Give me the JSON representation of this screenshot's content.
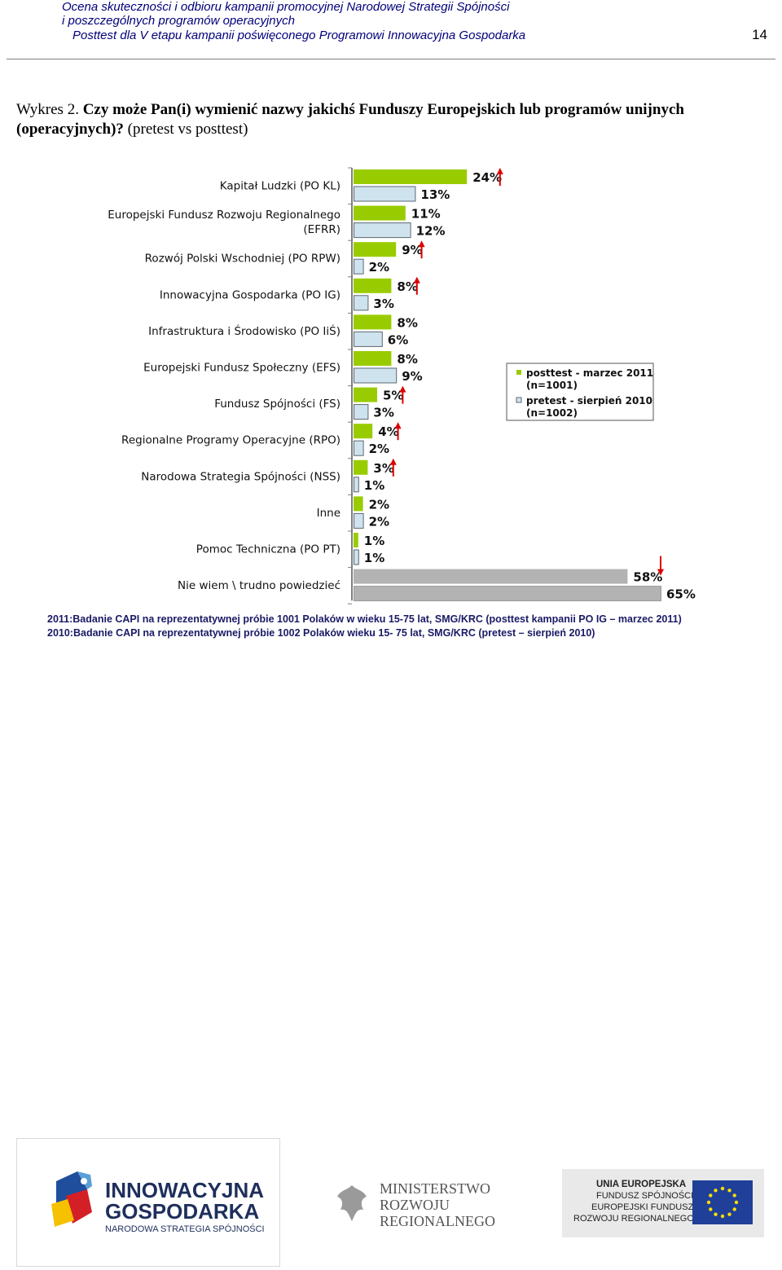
{
  "header": {
    "line1": "Ocena skuteczności i odbioru kampanii promocyjnej Narodowej Strategii Spójności",
    "line2": "i poszczególnych programów operacyjnych",
    "line3": "Posttest dla V etapu kampanii poświęconego Programowi Innowacyjna Gospodarka",
    "page_number": "14"
  },
  "figure": {
    "label": "Wykres 2.",
    "title": "Czy może Pan(i) wymienić nazwy jakichś Funduszy Europejskich lub programów unijnych",
    "title_cont": "(operacyjnych)?",
    "subtitle": "(pretest vs posttest)"
  },
  "colors": {
    "posttest": "#99cc00",
    "pretest": "#cfe3ee",
    "pretest_border": "#5b6770",
    "nie_wiem": "#b3b3b3",
    "arrow": "#dd0000"
  },
  "chart_data": {
    "type": "bar",
    "orientation": "horizontal",
    "categories": [
      "Kapitał Ludzki (PO KL)",
      "Europejski Fundusz Rozwoju Regionalnego (EFRR)",
      "Rozwój Polski Wschodniej (PO RPW)",
      "Innowacyjna Gospodarka (PO IG)",
      "Infrastruktura i Środowisko (PO IiŚ)",
      "Europejski Fundusz Społeczny (EFS)",
      "Fundusz Spójności (FS)",
      "Regionalne Programy Operacyjne (RPO)",
      "Narodowa Strategia Spójności (NSS)",
      "Inne",
      "Pomoc Techniczna (PO PT)",
      "Nie wiem \\ trudno powiedzieć"
    ],
    "category_lines": [
      [
        "Kapitał Ludzki (PO KL)"
      ],
      [
        "Europejski Fundusz Rozwoju Regionalnego",
        "(EFRR)"
      ],
      [
        "Rozwój Polski Wschodniej (PO RPW)"
      ],
      [
        "Innowacyjna Gospodarka (PO IG)"
      ],
      [
        "Infrastruktura i Środowisko (PO IiŚ)"
      ],
      [
        "Europejski Fundusz Społeczny (EFS)"
      ],
      [
        "Fundusz Spójności (FS)"
      ],
      [
        "Regionalne Programy Operacyjne (RPO)"
      ],
      [
        "Narodowa Strategia Spójności (NSS)"
      ],
      [
        "Inne"
      ],
      [
        "Pomoc Techniczna (PO PT)"
      ],
      [
        "Nie wiem \\ trudno powiedzieć"
      ]
    ],
    "series": [
      {
        "name": "posttest - marzec 2011 (n=1001)",
        "values": [
          24,
          11,
          9,
          8,
          8,
          8,
          5,
          4,
          3,
          2,
          1,
          58
        ],
        "labels": [
          "24%",
          "11%",
          "9%",
          "8%",
          "8%",
          "8%",
          "5%",
          "4%",
          "3%",
          "2%",
          "1%",
          "58%"
        ]
      },
      {
        "name": "pretest - sierpień 2010 (n=1002)",
        "values": [
          13,
          12,
          2,
          3,
          6,
          9,
          3,
          2,
          1,
          2,
          1,
          65
        ],
        "labels": [
          "13%",
          "12%",
          "2%",
          "3%",
          "6%",
          "9%",
          "3%",
          "2%",
          "1%",
          "2%",
          "1%",
          "65%"
        ]
      }
    ],
    "change_arrows": [
      "up",
      "none",
      "up",
      "up",
      "none",
      "none",
      "up",
      "up",
      "up",
      "none",
      "none",
      "down"
    ],
    "legend": {
      "posttest_line1": "posttest - marzec 2011",
      "posttest_line2": "(n=1001)",
      "pretest_line1": "pretest - sierpień 2010",
      "pretest_line2": "(n=1002)",
      "position": "right"
    },
    "xlim": [
      0,
      65
    ],
    "grid": false
  },
  "notes": {
    "note_2011": "2011:Badanie CAPI na reprezentatywnej próbie 1001 Polaków w wieku 15-75 lat, SMG/KRC (posttest kampanii PO IG – marzec 2011)",
    "note_2010": "2010:Badanie CAPI na reprezentatywnej próbie 1002 Polaków  wieku 15- 75 lat, SMG/KRC (pretest – sierpień 2010)"
  },
  "logos": {
    "ig_line1": "INNOWACYJNA",
    "ig_line2": "GOSPODARKA",
    "ig_line3": "NARODOWA STRATEGIA SPÓJNOŚCI",
    "min_line1": "MINISTERSTWO",
    "min_line2": "ROZWOJU",
    "min_line3": "REGIONALNEGO",
    "ue_line1": "UNIA EUROPEJSKA",
    "ue_line2": "FUNDUSZ SPÓJNOŚCI",
    "ue_line3": "EUROPEJSKI FUNDUSZ",
    "ue_line4": "ROZWOJU REGIONALNEGO"
  }
}
